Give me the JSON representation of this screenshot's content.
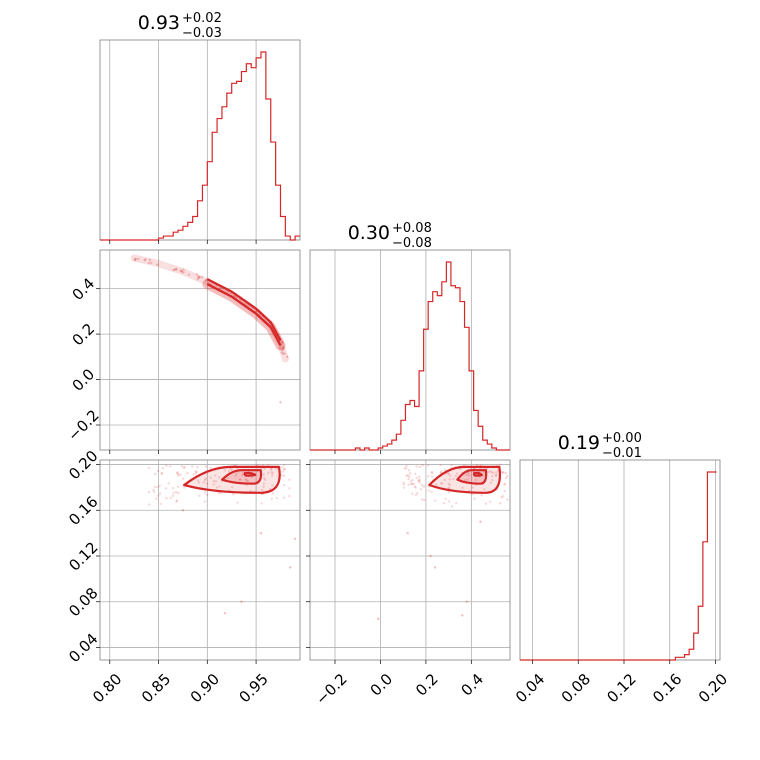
{
  "chart_data": {
    "type": "corner",
    "color": "#d62728",
    "params": [
      {
        "id": "p0",
        "range": [
          0.79,
          0.995
        ],
        "ticks": [
          0.8,
          0.85,
          0.9,
          0.95
        ],
        "tick_labels": [
          "0.80",
          "0.85",
          "0.90",
          "0.95"
        ],
        "title": {
          "median": "0.93",
          "plus": "+0.02",
          "minus": "−0.03"
        }
      },
      {
        "id": "p1",
        "range": [
          -0.31,
          0.57
        ],
        "ticks": [
          -0.2,
          0.0,
          0.2,
          0.4
        ],
        "tick_labels": [
          "−0.2",
          "0.0",
          "0.2",
          "0.4"
        ],
        "title": {
          "median": "0.30",
          "plus": "+0.08",
          "minus": "−0.08"
        }
      },
      {
        "id": "p2",
        "range": [
          0.029,
          0.204
        ],
        "ticks": [
          0.04,
          0.08,
          0.12,
          0.16,
          0.2
        ],
        "tick_labels": [
          "0.04",
          "0.08",
          "0.12",
          "0.16",
          "0.20"
        ],
        "title": {
          "median": "0.19",
          "plus": "+0.00",
          "minus": "−0.01"
        }
      }
    ],
    "histograms": [
      {
        "param": "p0",
        "edges": [
          0.79,
          0.795,
          0.8,
          0.805,
          0.81,
          0.815,
          0.82,
          0.825,
          0.83,
          0.835,
          0.84,
          0.845,
          0.85,
          0.855,
          0.86,
          0.865,
          0.87,
          0.875,
          0.88,
          0.885,
          0.89,
          0.895,
          0.9,
          0.905,
          0.91,
          0.915,
          0.92,
          0.925,
          0.93,
          0.935,
          0.94,
          0.945,
          0.95,
          0.955,
          0.96,
          0.965,
          0.97,
          0.975,
          0.98,
          0.985,
          0.99,
          0.995
        ],
        "counts": [
          0,
          0,
          0,
          0,
          0,
          0,
          0,
          0,
          0,
          0,
          0,
          0,
          1,
          2,
          2,
          4,
          5,
          7,
          9,
          12,
          20,
          28,
          40,
          55,
          62,
          68,
          75,
          80,
          81,
          86,
          90,
          88,
          93,
          96,
          72,
          50,
          28,
          12,
          2,
          0,
          2
        ]
      },
      {
        "param": "p1",
        "edges": [
          -0.31,
          -0.29,
          -0.27,
          -0.25,
          -0.23,
          -0.21,
          -0.19,
          -0.17,
          -0.15,
          -0.13,
          -0.11,
          -0.09,
          -0.07,
          -0.05,
          -0.03,
          -0.01,
          0.01,
          0.03,
          0.05,
          0.07,
          0.09,
          0.11,
          0.13,
          0.15,
          0.17,
          0.19,
          0.21,
          0.23,
          0.25,
          0.27,
          0.29,
          0.31,
          0.33,
          0.35,
          0.37,
          0.39,
          0.41,
          0.43,
          0.45,
          0.47,
          0.49,
          0.51,
          0.53,
          0.55,
          0.57
        ],
        "counts": [
          0,
          0,
          0,
          0,
          0,
          0,
          0,
          0,
          0,
          0,
          1,
          0,
          1,
          0,
          0,
          1,
          2,
          3,
          5,
          8,
          15,
          23,
          25,
          22,
          40,
          61,
          75,
          80,
          78,
          85,
          95,
          83,
          82,
          75,
          62,
          40,
          20,
          12,
          5,
          3,
          1,
          0,
          0,
          0
        ]
      },
      {
        "param": "p2",
        "edges": [
          0.029,
          0.033,
          0.037,
          0.041,
          0.045,
          0.049,
          0.053,
          0.057,
          0.061,
          0.065,
          0.069,
          0.073,
          0.077,
          0.081,
          0.085,
          0.089,
          0.093,
          0.097,
          0.101,
          0.105,
          0.109,
          0.113,
          0.117,
          0.121,
          0.125,
          0.129,
          0.133,
          0.137,
          0.141,
          0.145,
          0.149,
          0.153,
          0.157,
          0.161,
          0.165,
          0.169,
          0.173,
          0.177,
          0.181,
          0.185,
          0.189,
          0.193,
          0.197,
          0.201
        ],
        "counts": [
          0,
          0,
          0,
          0,
          0,
          0,
          0,
          0,
          0,
          0,
          0,
          0,
          0,
          0,
          0,
          0,
          0,
          0,
          0,
          0,
          0,
          0,
          0,
          0,
          0,
          0,
          0,
          0,
          0,
          0,
          0,
          0,
          0,
          0,
          1,
          1,
          2,
          4,
          10,
          20,
          44,
          70,
          70
        ]
      }
    ],
    "pairs": [
      {
        "x": "p0",
        "y": "p1",
        "ridge": [
          [
            0.825,
            0.535
          ],
          [
            0.85,
            0.51
          ],
          [
            0.875,
            0.475
          ],
          [
            0.9,
            0.43
          ],
          [
            0.925,
            0.375
          ],
          [
            0.95,
            0.3
          ],
          [
            0.965,
            0.24
          ],
          [
            0.975,
            0.16
          ],
          [
            0.98,
            0.09
          ]
        ],
        "outliers": [
          [
            0.975,
            -0.1
          ],
          [
            0.982,
            0.1
          ]
        ]
      },
      {
        "x": "p0",
        "y": "p2",
        "cluster": {
          "x": [
            0.84,
            0.985
          ],
          "y": [
            0.162,
            0.2
          ]
        },
        "outliers": [
          [
            0.935,
            0.08
          ],
          [
            0.918,
            0.07
          ],
          [
            0.985,
            0.11
          ],
          [
            0.955,
            0.14
          ],
          [
            0.875,
            0.16
          ],
          [
            0.99,
            0.135
          ]
        ]
      },
      {
        "x": "p1",
        "y": "p2",
        "cluster": {
          "x": [
            0.1,
            0.56
          ],
          "y": [
            0.162,
            0.2
          ]
        },
        "outliers": [
          [
            -0.01,
            0.065
          ],
          [
            0.38,
            0.08
          ],
          [
            0.36,
            0.068
          ],
          [
            0.22,
            0.12
          ],
          [
            0.24,
            0.11
          ],
          [
            0.12,
            0.14
          ],
          [
            0.44,
            0.15
          ]
        ]
      }
    ]
  }
}
